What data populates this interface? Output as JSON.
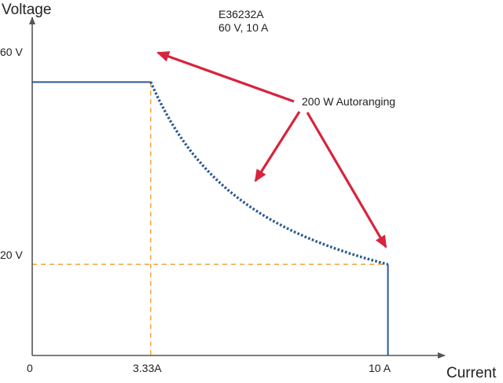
{
  "chart_data": {
    "type": "line",
    "title": "",
    "model": [
      "E36232A",
      "60 V, 10 A"
    ],
    "xlabel": "Current",
    "ylabel": "Voltage",
    "x_ticks": [
      {
        "value": 0,
        "label": "0"
      },
      {
        "value": 3.33,
        "label": "3.33A"
      },
      {
        "value": 10,
        "label": "10 A"
      }
    ],
    "y_ticks": [
      {
        "value": 20,
        "label": "20 V"
      },
      {
        "value": 60,
        "label": "60 V"
      }
    ],
    "xlim": [
      0,
      11.6
    ],
    "ylim": [
      0,
      72.5
    ],
    "series": [
      {
        "style": "solid",
        "segments": [
          {
            "x": [
              0,
              3.33
            ],
            "y": [
              60,
              60
            ]
          },
          {
            "x": [
              10,
              10
            ],
            "y": [
              20,
              0
            ]
          }
        ]
      },
      {
        "style": "dotted",
        "function": "constant_power",
        "power": 200,
        "x_range": [
          3.33,
          10
        ]
      }
    ],
    "reference_lines": [
      {
        "x": [
          3.33,
          3.33
        ],
        "y": [
          60,
          0
        ]
      },
      {
        "x": [
          0,
          10
        ],
        "y": [
          20,
          20
        ]
      }
    ],
    "annotation": {
      "text": "200 W Autoranging",
      "points_to": [
        {
          "x": 3.33,
          "y": 60
        },
        {
          "x": 6.5,
          "y": 30.8
        },
        {
          "x": 10,
          "y": 20
        }
      ]
    },
    "colors": {
      "line": "#2b5a94",
      "reference": "#f2a33a",
      "arrow": "#d8243c",
      "axis": "#555555"
    }
  }
}
